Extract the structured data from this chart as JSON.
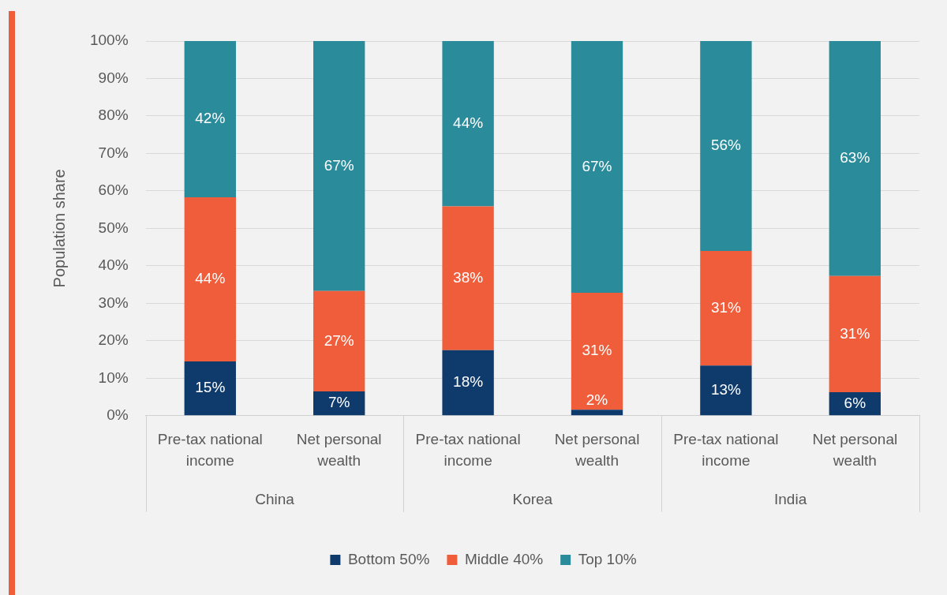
{
  "chart_data": {
    "type": "bar",
    "stacked": true,
    "ylabel": "Population share",
    "categories": [
      "Pre-tax national income",
      "Net personal wealth",
      "Pre-tax national income",
      "Net personal wealth",
      "Pre-tax national income",
      "Net personal wealth"
    ],
    "annotations": [
      "China",
      "Korea",
      "India"
    ],
    "series": [
      {
        "name": "Bottom 50%",
        "color": "#0e3a6c",
        "values": [
          14.5,
          6.5,
          17.5,
          1.6,
          13.4,
          6.3
        ],
        "value_labels": [
          "15%",
          "7%",
          "18%",
          "2%",
          "13%",
          "6%"
        ]
      },
      {
        "name": "Middle 40%",
        "color": "#f05d3b",
        "values": [
          43.8,
          26.8,
          38.4,
          31.2,
          30.6,
          31.0
        ],
        "value_labels": [
          "44%",
          "27%",
          "38%",
          "31%",
          "31%",
          "31%"
        ]
      },
      {
        "name": "Top 10%",
        "color": "#2a8b9b",
        "values": [
          41.7,
          66.7,
          44.1,
          67.2,
          56.0,
          62.7
        ],
        "value_labels": [
          "42%",
          "67%",
          "44%",
          "67%",
          "56%",
          "63%"
        ]
      }
    ],
    "ylim": [
      0,
      100
    ],
    "yticks": [
      {
        "value": 0,
        "label": "0%"
      },
      {
        "value": 10,
        "label": "10%"
      },
      {
        "value": 20,
        "label": "20%"
      },
      {
        "value": 30,
        "label": "30%"
      },
      {
        "value": 40,
        "label": "40%"
      },
      {
        "value": 50,
        "label": "50%"
      },
      {
        "value": 60,
        "label": "60%"
      },
      {
        "value": 70,
        "label": "70%"
      },
      {
        "value": 80,
        "label": "80%"
      },
      {
        "value": 90,
        "label": "90%"
      },
      {
        "value": 100,
        "label": "100%"
      }
    ],
    "grid": "y",
    "legend": "bottom"
  }
}
